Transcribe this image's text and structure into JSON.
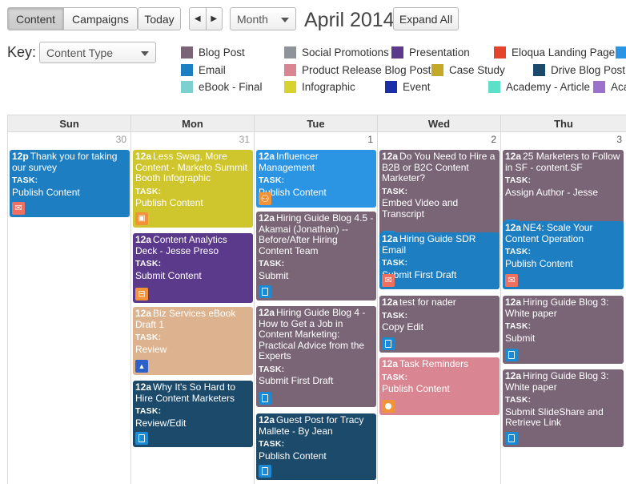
{
  "toolbar": {
    "view_tabs": [
      "Content",
      "Campaigns"
    ],
    "today_label": "Today",
    "prev_icon": "◀",
    "next_icon": "▶",
    "range_select": "Month",
    "title": "April 2014",
    "expand_label": "Expand All"
  },
  "key": {
    "label": "Key:",
    "select_value": "Content Type",
    "items": [
      {
        "label": "Blog Post",
        "color": "#7a6576"
      },
      {
        "label": "Social Promotions",
        "color": "#8e9499"
      },
      {
        "label": "Presentation",
        "color": "#5b3a8c"
      },
      {
        "label": "Eloqua Landing Page",
        "color": "#e4442b"
      },
      {
        "label": "",
        "color": "#2b95e4"
      },
      {
        "label": "Email",
        "color": "#1d7fc2"
      },
      {
        "label": "Product Release Blog Post",
        "color": "#d98592"
      },
      {
        "label": "Case Study",
        "color": "#c4a82a"
      },
      {
        "label": "Drive Blog Post",
        "color": "#1c4a6b"
      },
      {
        "label": "eBook - Final",
        "color": "#7ecfd0"
      },
      {
        "label": "Infographic",
        "color": "#d8d230"
      },
      {
        "label": "Event",
        "color": "#1a2fa8"
      },
      {
        "label": "Academy - Article",
        "color": "#5de0c8"
      },
      {
        "label": "Aca",
        "color": "#9a72cc"
      }
    ]
  },
  "calendar": {
    "days": [
      "Sun",
      "Mon",
      "Tue",
      "Wed",
      "Thu"
    ],
    "dates": [
      "30",
      "31",
      "1",
      "2",
      "3"
    ],
    "task_label": "TASK:",
    "events": [
      {
        "col": 0,
        "time": "12p",
        "title": "Thank you for taking our survey",
        "action": "Publish Content",
        "color": "#1d7fc2",
        "icon": "mail-icon"
      },
      {
        "col": 1,
        "time": "12a",
        "title": "Less Swag, More Content - Marketo Summit Booth Infographic",
        "action": "Publish Content",
        "color": "#cfc52c",
        "icon": "image-icon"
      },
      {
        "col": 1,
        "time": "12a",
        "title": "Content Analytics Deck - Jesse Preso",
        "action": "Submit Content",
        "color": "#5b3a8c",
        "icon": "presentation-icon"
      },
      {
        "col": 1,
        "time": "12a",
        "title": "Biz Services eBook Draft 1",
        "action": "Review",
        "color": "#dcb38e",
        "icon": "drive-icon"
      },
      {
        "col": 1,
        "time": "12a",
        "title": "Why It's So Hard to Hire Content Marketers",
        "action": "Review/Edit",
        "color": "#1c4a6b",
        "icon": "document-icon"
      },
      {
        "col": 2,
        "time": "12a",
        "title": "Influencer Management",
        "action": "Publish Content",
        "color": "#2b95e4",
        "icon": "people-icon"
      },
      {
        "col": 2,
        "time": "12a",
        "title": "Hiring Guide Blog 4.5 - Akamai (Jonathan) -- Before/After Hiring Content Team",
        "action": "Submit",
        "color": "#7a6576",
        "icon": "document-icon"
      },
      {
        "col": 2,
        "time": "12a",
        "title": "Hiring Guide Blog 4 - How to Get a Job in Content Marketing: Practical Advice from the Experts",
        "action": "Submit First Draft",
        "color": "#7a6576",
        "icon": "document-icon"
      },
      {
        "col": 2,
        "time": "12a",
        "title": "Guest Post for Tracy Mallete - By Jean",
        "action": "Publish Content",
        "color": "#1c4a6b",
        "icon": "document-icon"
      },
      {
        "col": 3,
        "time": "12a",
        "title": "Do You Need to Hire a B2B or B2C Content Marketer?",
        "action": "Embed Video and Transcript",
        "color": "#7a6576",
        "icon": "document-icon"
      },
      {
        "col": 3,
        "time": "12a",
        "title": "Hiring Guide SDR Email",
        "action": "Submit First Draft",
        "color": "#1d7fc2",
        "icon": "mail-icon"
      },
      {
        "col": 3,
        "time": "12a",
        "title": "test for nader",
        "action": "Copy Edit",
        "color": "#7a6576",
        "icon": "document-icon"
      },
      {
        "col": 3,
        "time": "12a",
        "title": "Task Reminders",
        "action": "Publish Content",
        "color": "#d98592",
        "icon": "circle-icon"
      },
      {
        "col": 4,
        "time": "12a",
        "title": "25 Marketers to Follow in SF - content.SF",
        "action": "Assign Author - Jesse",
        "color": "#7a6576",
        "icon": "document-icon"
      },
      {
        "col": 4,
        "time": "12a",
        "title": "NE4: Scale Your Content Operation",
        "action": "Publish Content",
        "color": "#1d7fc2",
        "icon": "mail-icon"
      },
      {
        "col": 4,
        "time": "12a",
        "title": "Hiring Guide Blog 3: White paper",
        "action": "Submit",
        "color": "#7a6576",
        "icon": "document-icon"
      },
      {
        "col": 4,
        "time": "12a",
        "title": "Hiring Guide Blog 3: White paper",
        "action": "Submit SlideShare and Retrieve Link",
        "color": "#7a6576",
        "icon": "document-icon"
      }
    ]
  }
}
